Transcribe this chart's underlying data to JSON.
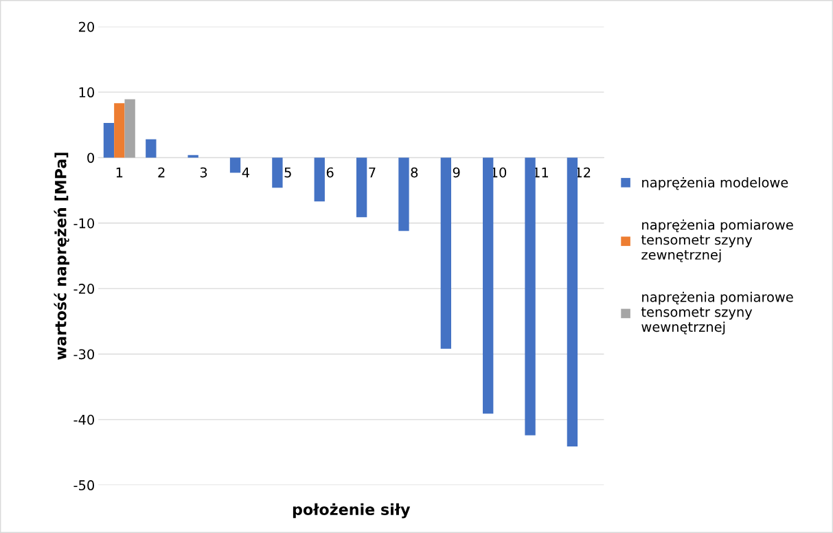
{
  "chart_data": {
    "type": "bar",
    "xlabel": "położenie siły",
    "ylabel": "wartość naprężeń [MPa]",
    "categories": [
      "1",
      "2",
      "3",
      "4",
      "5",
      "6",
      "7",
      "8",
      "9",
      "10",
      "11",
      "12"
    ],
    "series": [
      {
        "name": "naprężenia modelowe",
        "color": "#4472c4",
        "values": [
          5.3,
          2.8,
          0.4,
          -2.3,
          -4.6,
          -6.7,
          -9.1,
          -11.2,
          -29.2,
          -39.1,
          -42.4,
          -44.1
        ]
      },
      {
        "name": "naprężenia pomiarowe\ntensometr szyny\nzewnętrznej",
        "color": "#ed7d31",
        "values": [
          8.3,
          null,
          null,
          null,
          null,
          null,
          null,
          null,
          null,
          null,
          null,
          null
        ]
      },
      {
        "name": "naprężenia pomiarowe\ntensometr szyny\nwewnętrznej",
        "color": "#a5a5a5",
        "values": [
          8.9,
          null,
          null,
          null,
          null,
          null,
          null,
          null,
          null,
          null,
          null,
          null
        ]
      }
    ],
    "ylim": [
      -50,
      20
    ],
    "yticks": [
      -50,
      -40,
      -30,
      -20,
      -10,
      0,
      10,
      20
    ],
    "grid": "y",
    "legend": "right"
  }
}
